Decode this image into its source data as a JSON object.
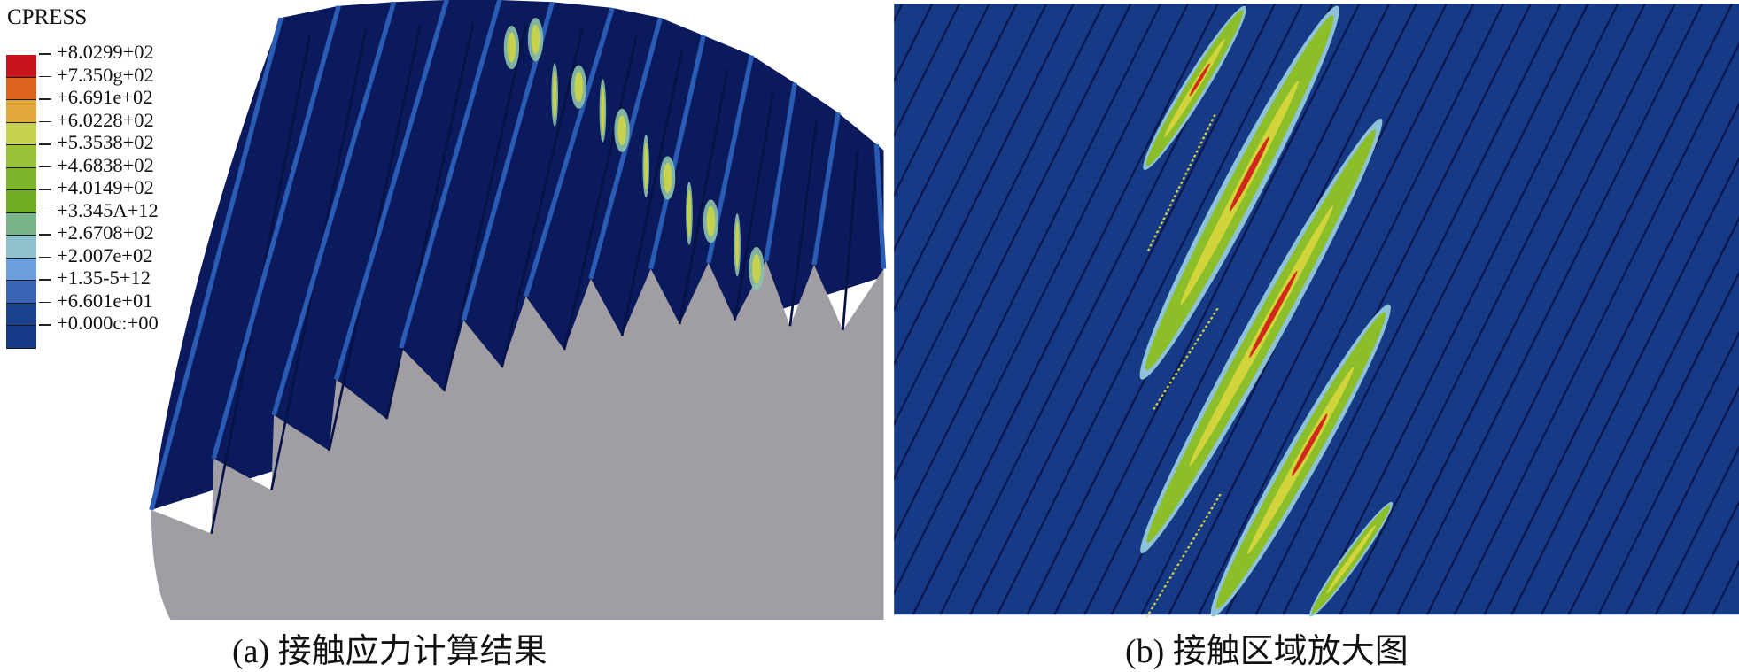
{
  "legend": {
    "title": "CPRESS",
    "labels": [
      "+8.0299+02",
      "+7.350g+02",
      "+6.691e+02",
      "+6.0228+02",
      "+5.3538+02",
      "+4.6838+02",
      "+4.0149+02",
      "+3.345A+12",
      "+2.6708+02",
      "+2.007e+02",
      "+1.35-5+12",
      "+6.601e+01",
      "+0.000c:+00"
    ],
    "colors": [
      "#c8141a",
      "#dc6220",
      "#e4a83c",
      "#c4d250",
      "#98c23a",
      "#7eb42a",
      "#72ae24",
      "#7ab48a",
      "#8ec2cc",
      "#6a9edc",
      "#3a64b4",
      "#1e438e",
      "#163a86"
    ]
  },
  "panel_a": {
    "caption": "(a) 接触应力计算结果",
    "colors": {
      "tooth": "#0a1a5c",
      "tooth_edge": "#2a5cb4",
      "cut_face": "#a09ea4"
    }
  },
  "panel_b": {
    "caption": "(b) 接触区域放大图",
    "colors": {
      "background": "#163a86",
      "line": "#0a1850",
      "green": "#8cbe2a",
      "yellow": "#d2d43c",
      "red": "#d0281a",
      "halo": "#8ec2d8"
    }
  }
}
